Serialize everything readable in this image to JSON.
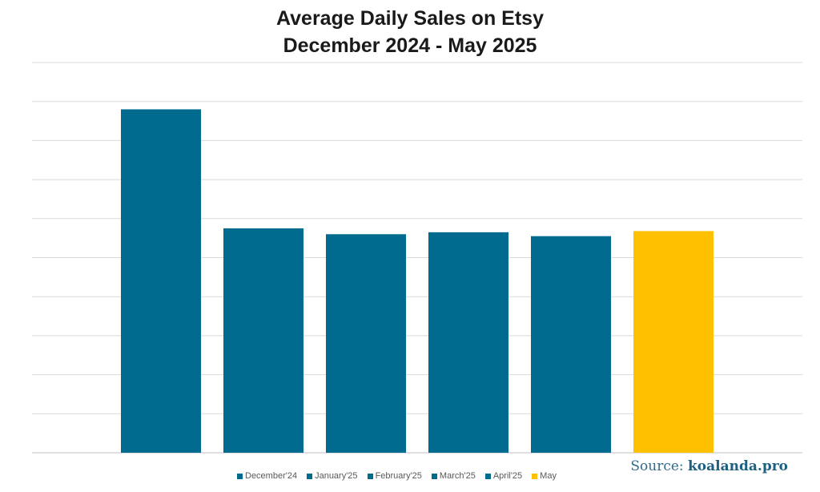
{
  "chart_data": {
    "type": "bar",
    "title": "Average Daily Sales on Etsy",
    "subtitle": "December 2024 - May 2025",
    "categories": [
      "December'24",
      "January'25",
      "February'25",
      "March'25",
      "April'25",
      "May"
    ],
    "values": [
      8.8,
      5.75,
      5.6,
      5.65,
      5.55,
      5.68
    ],
    "ylim": [
      0,
      10
    ],
    "grid": true,
    "legend_position": "bottom",
    "colors": [
      "#006b8f",
      "#006b8f",
      "#006b8f",
      "#006b8f",
      "#006b8f",
      "#ffc000"
    ]
  },
  "legend": [
    {
      "label": "December'24",
      "color": "#006b8f"
    },
    {
      "label": "January'25",
      "color": "#006b8f"
    },
    {
      "label": "February'25",
      "color": "#006b8f"
    },
    {
      "label": "March'25",
      "color": "#006b8f"
    },
    {
      "label": "April'25",
      "color": "#006b8f"
    },
    {
      "label": "May",
      "color": "#ffc000"
    }
  ],
  "source": {
    "prefix": "Source:",
    "link": "koalanda.pro"
  }
}
